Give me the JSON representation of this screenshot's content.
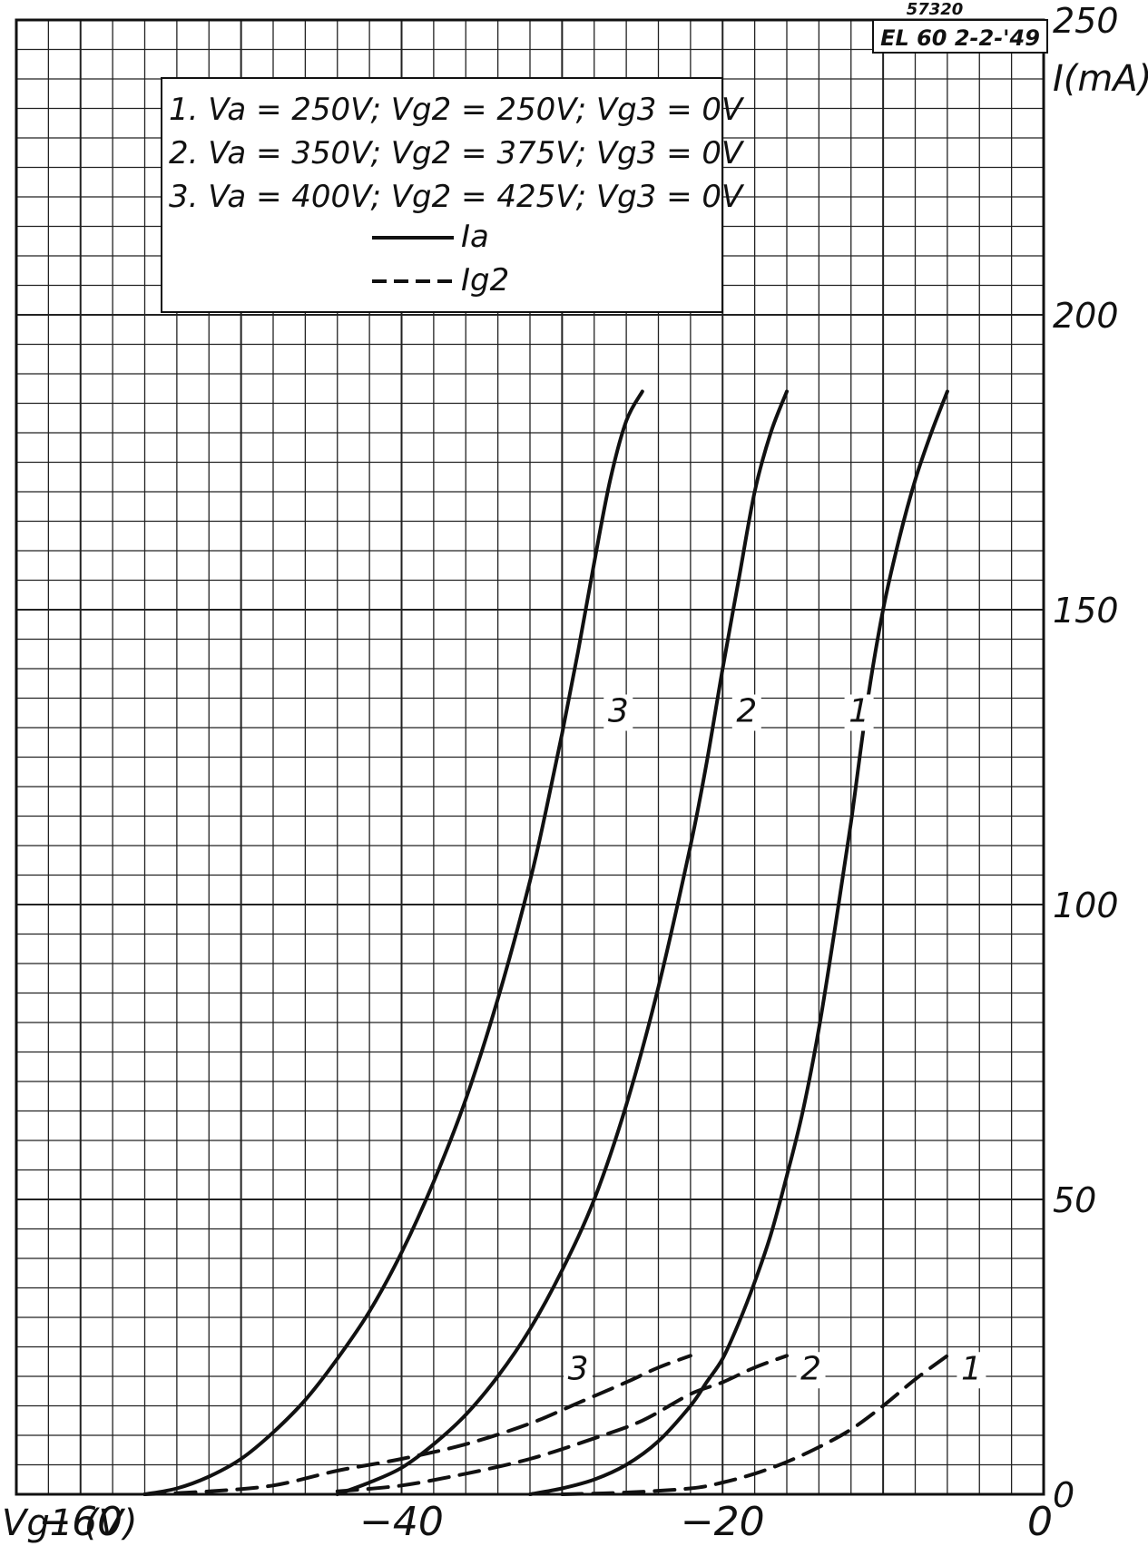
{
  "chart_data": {
    "type": "line",
    "stamp": {
      "number": "57320",
      "code": "EL 60 2-2-'49"
    },
    "x_axis": {
      "label": "Vg1 (V)",
      "range": [
        -64,
        0
      ],
      "ticks": [
        {
          "value": -60,
          "label": "-60"
        },
        {
          "value": -40,
          "label": "-40"
        },
        {
          "value": -20,
          "label": "-20"
        },
        {
          "value": 0,
          "label": "0"
        }
      ]
    },
    "y_axis": {
      "label": "I(mA)",
      "range": [
        0,
        250
      ],
      "ticks": [
        {
          "value": 0,
          "label": "0"
        },
        {
          "value": 50,
          "label": "50"
        },
        {
          "value": 100,
          "label": "100"
        },
        {
          "value": 150,
          "label": "150"
        },
        {
          "value": 200,
          "label": "200"
        },
        {
          "value": 250,
          "label": "250"
        }
      ]
    },
    "grid": {
      "on": true,
      "x_step": 2,
      "y_step": 5
    },
    "legend": {
      "placement": "top-left",
      "conditions": [
        "1. Va = 250V; Vg2 = 250V; Vg3 = 0V",
        "2. Va = 350V; Vg2 = 375V; Vg3 = 0V",
        "3. Va = 400V; Vg2 = 425V; Vg3 = 0V"
      ],
      "solid_label": "Ia",
      "dashed_label": "Ig2"
    },
    "series": [
      {
        "name": "1",
        "kind": "Ia",
        "style": "solid",
        "points": [
          [
            -32,
            0
          ],
          [
            -30,
            1
          ],
          [
            -28,
            2.5
          ],
          [
            -26,
            5
          ],
          [
            -24,
            9
          ],
          [
            -22,
            15
          ],
          [
            -21,
            19
          ],
          [
            -20,
            23
          ],
          [
            -19,
            29
          ],
          [
            -18,
            36
          ],
          [
            -17,
            44
          ],
          [
            -16,
            54
          ],
          [
            -15,
            65
          ],
          [
            -14,
            79
          ],
          [
            -13,
            96
          ],
          [
            -12,
            114
          ],
          [
            -11,
            134
          ],
          [
            -10,
            150
          ],
          [
            -9,
            162
          ],
          [
            -8,
            172
          ],
          [
            -7,
            180
          ],
          [
            -6,
            187
          ]
        ],
        "label": {
          "text": "1",
          "x": -11.5,
          "y": 131
        }
      },
      {
        "name": "2",
        "kind": "Ia",
        "style": "solid",
        "points": [
          [
            -44,
            0
          ],
          [
            -42,
            2
          ],
          [
            -40,
            4.5
          ],
          [
            -38,
            8.5
          ],
          [
            -36,
            13.5
          ],
          [
            -34,
            20
          ],
          [
            -32,
            28
          ],
          [
            -30,
            38
          ],
          [
            -28,
            50
          ],
          [
            -26,
            66
          ],
          [
            -24,
            86
          ],
          [
            -22,
            110
          ],
          [
            -21,
            124
          ],
          [
            -20,
            140
          ],
          [
            -19,
            155
          ],
          [
            -18,
            170
          ],
          [
            -17,
            180
          ],
          [
            -16,
            187
          ]
        ],
        "label": {
          "text": "2",
          "x": -18.5,
          "y": 131
        }
      },
      {
        "name": "3",
        "kind": "Ia",
        "style": "solid",
        "points": [
          [
            -56,
            0
          ],
          [
            -54,
            1
          ],
          [
            -52,
            3
          ],
          [
            -50,
            6
          ],
          [
            -48,
            10.5
          ],
          [
            -46,
            16
          ],
          [
            -44,
            23
          ],
          [
            -42,
            31
          ],
          [
            -40,
            41
          ],
          [
            -38,
            53
          ],
          [
            -36,
            67
          ],
          [
            -34,
            84
          ],
          [
            -32,
            104
          ],
          [
            -31,
            116
          ],
          [
            -30,
            129
          ],
          [
            -29,
            143
          ],
          [
            -28,
            158
          ],
          [
            -27,
            172
          ],
          [
            -26,
            182
          ],
          [
            -25,
            187
          ]
        ],
        "label": {
          "text": "3",
          "x": -26.5,
          "y": 131
        }
      },
      {
        "name": "1",
        "kind": "Ig2",
        "style": "dashed",
        "points": [
          [
            -30,
            0
          ],
          [
            -26,
            0.3
          ],
          [
            -22,
            1
          ],
          [
            -20,
            2
          ],
          [
            -18,
            3.5
          ],
          [
            -16,
            5.5
          ],
          [
            -14,
            8
          ],
          [
            -12,
            11
          ],
          [
            -10,
            15
          ],
          [
            -8,
            19.5
          ],
          [
            -6,
            23.5
          ]
        ],
        "label": {
          "text": "1",
          "x": -4.5,
          "y": 19.5
        }
      },
      {
        "name": "2",
        "kind": "Ig2",
        "style": "dashed",
        "points": [
          [
            -44,
            0.5
          ],
          [
            -40,
            1.5
          ],
          [
            -36,
            3.5
          ],
          [
            -32,
            6
          ],
          [
            -28,
            9.5
          ],
          [
            -25,
            12.5
          ],
          [
            -22,
            17
          ],
          [
            -20,
            19
          ],
          [
            -18,
            21.5
          ],
          [
            -16,
            23.5
          ]
        ],
        "label": {
          "text": "2",
          "x": -14.5,
          "y": 19.5
        }
      },
      {
        "name": "3",
        "kind": "Ig2",
        "style": "dashed",
        "points": [
          [
            -56,
            0
          ],
          [
            -52,
            0.5
          ],
          [
            -48,
            1.5
          ],
          [
            -44,
            4
          ],
          [
            -40,
            6
          ],
          [
            -36,
            8.5
          ],
          [
            -32,
            12
          ],
          [
            -29,
            15.5
          ],
          [
            -26,
            19
          ],
          [
            -24,
            21.5
          ],
          [
            -22,
            23.5
          ]
        ],
        "label": {
          "text": "3",
          "x": -29,
          "y": 19.5
        }
      }
    ]
  }
}
